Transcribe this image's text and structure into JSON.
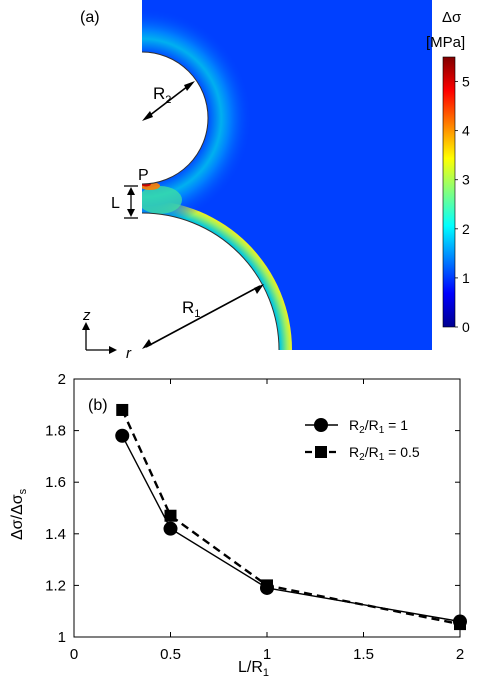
{
  "panel_a": {
    "label": "(a)",
    "colorbar": {
      "title_symbol": "Δσ",
      "unit": "[MPa]",
      "min": 0,
      "max": 5.5,
      "ticks": [
        "5",
        "4",
        "3",
        "2",
        "1",
        "0"
      ],
      "colors": [
        "#00008f",
        "#0000ff",
        "#0080ff",
        "#00ffff",
        "#80ff80",
        "#ffff00",
        "#ff8000",
        "#ff0000",
        "#800000"
      ]
    },
    "labels": {
      "R2": "R",
      "R2_sub": "2",
      "R1": "R",
      "R1_sub": "1",
      "P": "P",
      "L": "L",
      "z_axis": "z",
      "r_axis": "r"
    }
  },
  "chart_data": {
    "type": "line",
    "panel_label": "(b)",
    "xlabel": "L/R",
    "xlabel_sub": "1",
    "ylabel": "Δσ/Δσ",
    "ylabel_sub": "s",
    "xlim": [
      0,
      2
    ],
    "ylim": [
      1,
      2
    ],
    "x_ticks": [
      "0",
      "0.5",
      "1",
      "1.5",
      "2"
    ],
    "y_ticks": [
      "1",
      "1.2",
      "1.4",
      "1.6",
      "1.8",
      "2"
    ],
    "legend_position": "top-right",
    "series": [
      {
        "name": "R2/R1 = 1",
        "legend": {
          "a": "R",
          "a_sub": "2",
          "mid": "/R",
          "b_sub": "1",
          "tail": " = 1"
        },
        "marker": "circle",
        "line": "solid",
        "x": [
          0.25,
          0.5,
          1,
          2
        ],
        "y": [
          1.78,
          1.42,
          1.19,
          1.06
        ]
      },
      {
        "name": "R2/R1 = 0.5",
        "legend": {
          "a": "R",
          "a_sub": "2",
          "mid": "/R",
          "b_sub": "1",
          "tail": " = 0.5"
        },
        "marker": "square",
        "line": "dashed",
        "x": [
          0.25,
          0.5,
          1,
          2
        ],
        "y": [
          1.88,
          1.47,
          1.2,
          1.05
        ]
      }
    ]
  }
}
